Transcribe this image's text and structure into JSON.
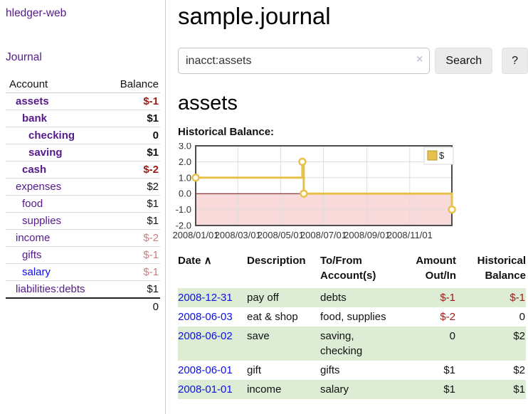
{
  "colors": {
    "link_purple": "#551a8b",
    "link_blue": "#0f0fe8",
    "negative_dark": "#9e1919",
    "negative_light": "#c98080",
    "stripe_green": "#dcecd5",
    "divider_gray": "#cccccc",
    "chart_line_gold": "#e6c24a",
    "chart_fill_pink": "#f9dada",
    "chart_zero_line": "#7a0c0c",
    "chart_grid": "#dddddd",
    "chart_border": "#4d4d4d"
  },
  "sidebar": {
    "app_title": "hledger-web",
    "nav": {
      "journal_label": "Journal"
    },
    "accounts_table": {
      "header": {
        "account": "Account",
        "balance": "Balance"
      },
      "rows": [
        {
          "name": "assets",
          "balance": "$-1",
          "level": 1,
          "bold": true,
          "tone": "dark"
        },
        {
          "name": "bank",
          "balance": "$1",
          "level": 2,
          "bold": true,
          "tone": null
        },
        {
          "name": "checking",
          "balance": "0",
          "level": 3,
          "bold": true,
          "tone": null
        },
        {
          "name": "saving",
          "balance": "$1",
          "level": 3,
          "bold": true,
          "tone": null
        },
        {
          "name": "cash",
          "balance": "$-2",
          "level": 2,
          "bold": true,
          "tone": "dark"
        },
        {
          "name": "expenses",
          "balance": "$2",
          "level": 1,
          "bold": false,
          "tone": null
        },
        {
          "name": "food",
          "balance": "$1",
          "level": 2,
          "bold": false,
          "tone": null
        },
        {
          "name": "supplies",
          "balance": "$1",
          "level": 2,
          "bold": false,
          "tone": null
        },
        {
          "name": "income",
          "balance": "$-2",
          "level": 1,
          "bold": false,
          "tone": "light"
        },
        {
          "name": "gifts",
          "balance": "$-1",
          "level": 2,
          "bold": false,
          "tone": "light"
        },
        {
          "name": "salary",
          "balance": "$-1",
          "level": 2,
          "bold": false,
          "tone": "light",
          "link": "blue"
        },
        {
          "name": "liabilities:debts",
          "balance": "$1",
          "level": 1,
          "bold": false,
          "tone": null
        }
      ],
      "total": "0"
    }
  },
  "main": {
    "title": "sample.journal",
    "search": {
      "value": "inacct:assets",
      "clear_icon": "×",
      "button_label": "Search",
      "help_label": "?"
    },
    "account_heading": "assets",
    "chart_label": "Historical Balance:"
  },
  "chart_data": {
    "type": "line",
    "step": true,
    "title": "Historical Balance:",
    "xlabel": "",
    "ylabel": "",
    "ylim": [
      -2,
      3
    ],
    "x_range": [
      "2008-01-01",
      "2008-12-31"
    ],
    "y_ticks": [
      "3.0",
      "2.0",
      "1.0",
      "0.0",
      "-1.0",
      "-2.0"
    ],
    "x_ticks": [
      "2008/01/01",
      "2008/03/01",
      "2008/05/01",
      "2008/07/01",
      "2008/09/01",
      "2008/11/01"
    ],
    "grid": true,
    "negative_region_shaded": true,
    "legend_position": "top-right",
    "series": [
      {
        "name": "$",
        "points": [
          [
            "2008-01-01",
            1
          ],
          [
            "2008-06-01",
            2
          ],
          [
            "2008-06-03",
            0
          ],
          [
            "2008-12-31",
            -1
          ]
        ]
      }
    ]
  },
  "transactions": {
    "sort": {
      "column": "Date",
      "direction": "asc",
      "icon": "∧"
    },
    "columns": [
      {
        "lines": [
          "Date"
        ],
        "align": "left"
      },
      {
        "lines": [
          "Description"
        ],
        "align": "left"
      },
      {
        "lines": [
          "To/From",
          "Account(s)"
        ],
        "align": "left"
      },
      {
        "lines": [
          "Amount",
          "Out/In"
        ],
        "align": "right"
      },
      {
        "lines": [
          "Historical",
          "Balance"
        ],
        "align": "right"
      }
    ],
    "rows": [
      {
        "date": "2008-12-31",
        "description": "pay off",
        "accounts": "debts",
        "accounts_lines": [
          "debts"
        ],
        "amount": "$-1",
        "amount_tone": "dark",
        "balance": "$-1",
        "balance_tone": "dark"
      },
      {
        "date": "2008-06-03",
        "description": "eat & shop",
        "accounts": "food, supplies",
        "accounts_lines": [
          "food, supplies"
        ],
        "amount": "$-2",
        "amount_tone": "dark",
        "balance": "0",
        "balance_tone": null
      },
      {
        "date": "2008-06-02",
        "description": "save",
        "accounts": "saving, checking",
        "accounts_lines": [
          "saving,",
          "checking"
        ],
        "amount": "0",
        "amount_tone": null,
        "balance": "$2",
        "balance_tone": null
      },
      {
        "date": "2008-06-01",
        "description": "gift",
        "accounts": "gifts",
        "accounts_lines": [
          "gifts"
        ],
        "amount": "$1",
        "amount_tone": null,
        "balance": "$2",
        "balance_tone": null
      },
      {
        "date": "2008-01-01",
        "description": "income",
        "accounts": "salary",
        "accounts_lines": [
          "salary"
        ],
        "amount": "$1",
        "amount_tone": null,
        "balance": "$1",
        "balance_tone": null
      }
    ]
  }
}
